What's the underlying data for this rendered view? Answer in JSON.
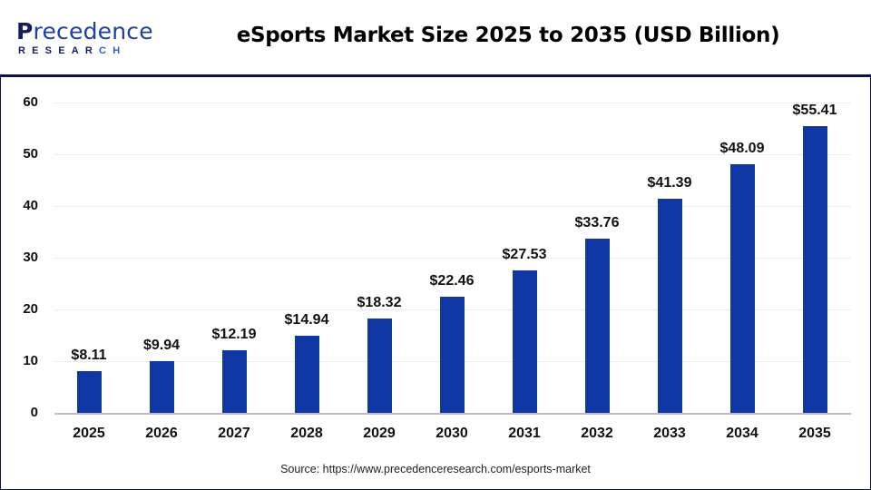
{
  "header": {
    "logo": {
      "line1_first": "P",
      "line1_rest": "recedence",
      "line2_main": "RESEAR",
      "line2_accent": "CH"
    },
    "title": "eSports Market Size 2025 to 2035 (USD Billion)"
  },
  "footer": {
    "source": "Source: https://www.precedenceresearch.com/esports-market"
  },
  "colors": {
    "bar": "#0f38a6",
    "header_separator": "#0b1446",
    "logo_navy": "#141d5c",
    "logo_blue": "#2a5fd8"
  },
  "chart_data": {
    "type": "bar",
    "title": "eSports Market Size 2025 to 2035 (USD Billion)",
    "xlabel": "",
    "ylabel": "",
    "categories": [
      "2025",
      "2026",
      "2027",
      "2028",
      "2029",
      "2030",
      "2031",
      "2032",
      "2033",
      "2034",
      "2035"
    ],
    "values": [
      8.11,
      9.94,
      12.19,
      14.94,
      18.32,
      22.46,
      27.53,
      33.76,
      41.39,
      48.09,
      55.41
    ],
    "value_labels": [
      "$8.11",
      "$9.94",
      "$12.19",
      "$14.94",
      "$18.32",
      "$22.46",
      "$27.53",
      "$33.76",
      "$41.39",
      "$48.09",
      "$55.41"
    ],
    "yticks": [
      "0",
      "10",
      "20",
      "30",
      "40",
      "50",
      "60"
    ],
    "ylim": [
      0,
      60
    ],
    "grid": true,
    "legend": "none"
  }
}
